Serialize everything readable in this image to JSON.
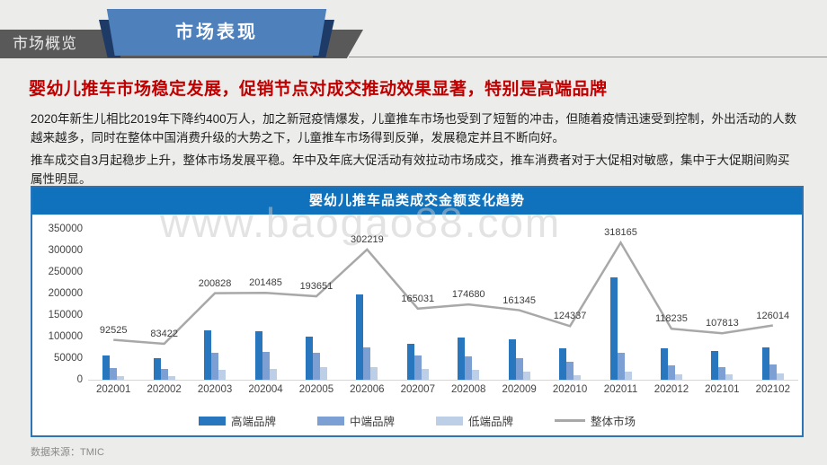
{
  "header": {
    "section_label": "市场概览",
    "ribbon_label": "市场表现"
  },
  "headline": "婴幼儿推车市场稳定发展，促销节点对成交推动效果显著，特别是高端品牌",
  "paragraphs": [
    "2020年新生儿相比2019年下降约400万人，加之新冠疫情爆发，儿童推车市场也受到了短暂的冲击，但随着疫情迅速受到控制，外出活动的人数越来越多，同时在整体中国消费升级的大势之下，儿童推车市场得到反弹，发展稳定并且不断向好。",
    "推车成交自3月起稳步上升，整体市场发展平稳。年中及年底大促活动有效拉动市场成交，推车消费者对于大促相对敏感，集中于大促期间购买属性明显。"
  ],
  "watermark": "www.baogao88.com",
  "source_note": "数据来源：TMIC",
  "colors": {
    "headline_red": "#c00000",
    "header_gray": "#595959",
    "ribbon_blue": "#4e80bc",
    "ribbon_fold_navy": "#1e3a66",
    "chart_title_blue": "#1072bd",
    "panel_border_blue": "#2c74b3",
    "bar_high": "#2776be",
    "bar_mid": "#7ca0d4",
    "bar_low": "#bccfe7",
    "line_total": "#a8a8a8"
  },
  "chart_data": {
    "type": "bar",
    "title": "婴幼儿推车品类成交金额变化趋势",
    "categories": [
      "202001",
      "202002",
      "202003",
      "202004",
      "202005",
      "202006",
      "202007",
      "202008",
      "202009",
      "202010",
      "202011",
      "202012",
      "202101",
      "202102"
    ],
    "series": [
      {
        "name": "高端品牌",
        "type": "bar",
        "color_key": "bar_high",
        "values": [
          56000,
          50000,
          115000,
          112000,
          101000,
          197000,
          84000,
          97000,
          93000,
          72000,
          237000,
          73000,
          67000,
          76000
        ]
      },
      {
        "name": "中端品牌",
        "type": "bar",
        "color_key": "bar_mid",
        "values": [
          28000,
          24000,
          63000,
          65000,
          62000,
          76000,
          57000,
          55000,
          50000,
          41000,
          62000,
          33000,
          29000,
          35000
        ]
      },
      {
        "name": "低端品牌",
        "type": "bar",
        "color_key": "bar_low",
        "values": [
          9000,
          9000,
          22000,
          24000,
          30000,
          29000,
          24000,
          22000,
          18000,
          11000,
          19000,
          12000,
          12000,
          15000
        ]
      },
      {
        "name": "整体市场",
        "type": "line",
        "color_key": "line_total",
        "data_labels": true,
        "values": [
          92525,
          83422,
          200828,
          201485,
          193651,
          302219,
          165031,
          174680,
          161345,
          124337,
          318165,
          118235,
          107813,
          126014
        ]
      }
    ],
    "ylim": [
      0,
      350000
    ],
    "ytick_step": 50000,
    "ytick_labels": [
      "0",
      "50000",
      "100000",
      "150000",
      "200000",
      "250000",
      "300000",
      "350000"
    ],
    "legend_position": "bottom",
    "grid": false,
    "note": "bar values are visual estimates; line values are the printed data labels"
  }
}
